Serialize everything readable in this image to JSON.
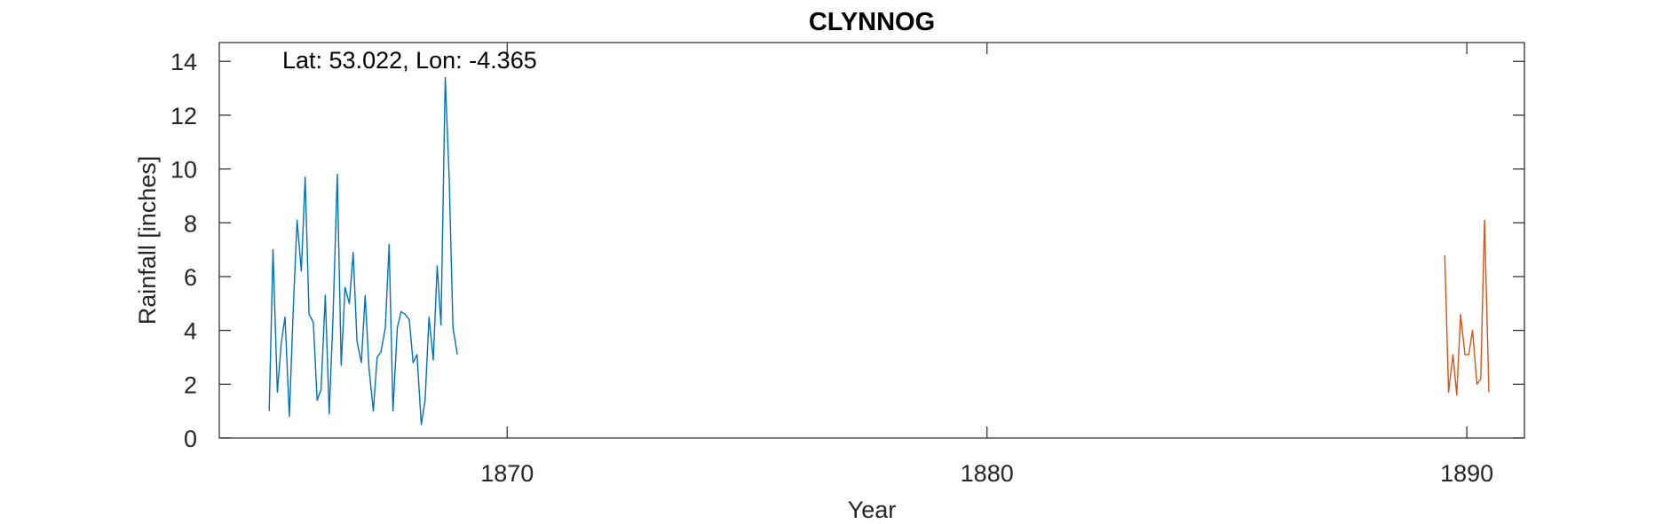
{
  "chart_data": {
    "type": "line",
    "title": "CLYNNOG",
    "annotation": "Lat: 53.022, Lon: -4.365",
    "xlabel": "Year",
    "ylabel": "Rainfall [inches]",
    "xlim": [
      1864.0,
      1891.2
    ],
    "ylim": [
      0,
      14.7
    ],
    "xticks": [
      1870,
      1880,
      1890
    ],
    "yticks": [
      0,
      2,
      4,
      6,
      8,
      10,
      12,
      14
    ],
    "grid": false,
    "series": [
      {
        "color": "#0072BD",
        "x": [
          1865.04,
          1865.12,
          1865.21,
          1865.29,
          1865.37,
          1865.46,
          1865.54,
          1865.62,
          1865.71,
          1865.79,
          1865.87,
          1865.96,
          1866.04,
          1866.12,
          1866.21,
          1866.29,
          1866.37,
          1866.46,
          1866.54,
          1866.62,
          1866.71,
          1866.79,
          1866.87,
          1866.96,
          1867.04,
          1867.12,
          1867.21,
          1867.29,
          1867.37,
          1867.46,
          1867.54,
          1867.62,
          1867.71,
          1867.79,
          1867.87,
          1867.96,
          1868.04,
          1868.12,
          1868.21,
          1868.29,
          1868.37,
          1868.46,
          1868.54,
          1868.62,
          1868.71,
          1868.79,
          1868.87,
          1868.96
        ],
        "values": [
          1.0,
          7.0,
          1.7,
          3.5,
          4.5,
          0.8,
          4.7,
          8.1,
          6.2,
          9.7,
          4.6,
          4.3,
          1.4,
          1.8,
          5.3,
          0.9,
          4.5,
          9.8,
          2.7,
          5.6,
          5.0,
          6.9,
          3.6,
          2.8,
          5.3,
          2.6,
          1.0,
          3.0,
          3.2,
          4.1,
          7.2,
          1.0,
          4.1,
          4.7,
          4.6,
          4.4,
          2.8,
          3.1,
          0.5,
          1.4,
          4.5,
          2.9,
          6.4,
          4.2,
          13.4,
          9.7,
          4.1,
          3.1
        ]
      },
      {
        "color": "#D95319",
        "x": [
          1889.54,
          1889.62,
          1889.71,
          1889.79,
          1889.87,
          1889.96,
          1890.04,
          1890.12,
          1890.21,
          1890.29,
          1890.37,
          1890.46
        ],
        "values": [
          6.8,
          1.7,
          3.1,
          1.6,
          4.6,
          3.1,
          3.1,
          4.0,
          2.0,
          2.2,
          8.1,
          1.7
        ]
      }
    ]
  }
}
